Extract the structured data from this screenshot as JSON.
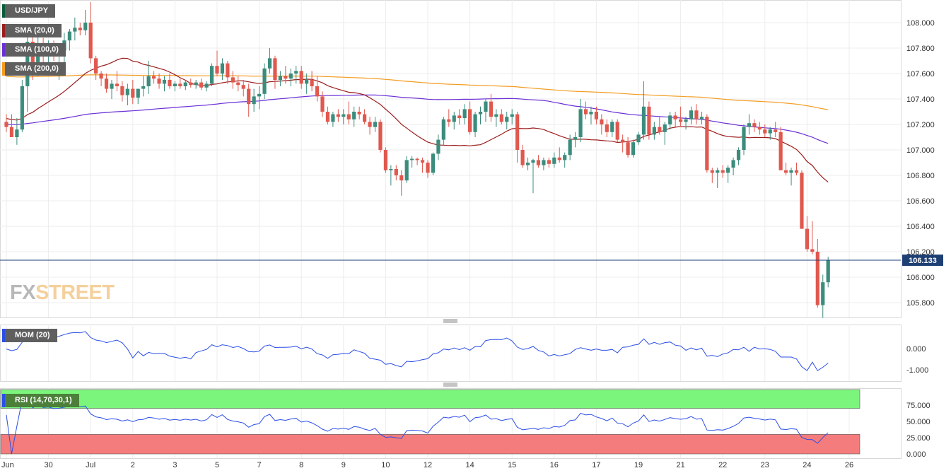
{
  "logo": {
    "fx": "FX",
    "street": "STREET"
  },
  "price_label": "106.133",
  "colors": {
    "bull": "#3b8c7c",
    "bear": "#e0584e",
    "sma20": "#9b1c1c",
    "sma100": "#6a2fd6",
    "sma200": "#f39c22",
    "mom": "#2b4ee6",
    "rsi": "#2b4ee6",
    "price_line": "#1e3f74",
    "grid": "#ececec",
    "rsi_ob": "#7cf57c",
    "rsi_os": "#f57c7c"
  },
  "indicators": {
    "main": [
      "USD/JPY",
      "SMA (20,0)",
      "SMA (100,0)",
      "SMA (200,0)"
    ],
    "mom": "MOM (20)",
    "rsi": "RSI (14,70,30,1)"
  },
  "chart_data": {
    "type": "candlestick",
    "series": [
      {
        "name": "USD/JPY"
      },
      {
        "name": "SMA (20,0)"
      },
      {
        "name": "SMA (100,0)"
      },
      {
        "name": "SMA (200,0)"
      }
    ],
    "yticks": [
      "108.000",
      "107.800",
      "107.600",
      "107.400",
      "107.200",
      "107.000",
      "106.800",
      "106.600",
      "106.400",
      "106.200",
      "106.000",
      "105.800"
    ],
    "mom_ticks": [
      "0.000",
      "-1.000"
    ],
    "rsi_ticks": [
      "75.000",
      "50.000",
      "25.000",
      "0.000"
    ],
    "xticks": [
      {
        "label": "Jun",
        "i": 0
      },
      {
        "label": "30",
        "i": 8
      },
      {
        "label": "Jul",
        "i": 16
      },
      {
        "label": "2",
        "i": 24
      },
      {
        "label": "3",
        "i": 32
      },
      {
        "label": "5",
        "i": 40
      },
      {
        "label": "7",
        "i": 48
      },
      {
        "label": "8",
        "i": 56
      },
      {
        "label": "9",
        "i": 64
      },
      {
        "label": "10",
        "i": 72
      },
      {
        "label": "12",
        "i": 80
      },
      {
        "label": "14",
        "i": 88
      },
      {
        "label": "15",
        "i": 96
      },
      {
        "label": "16",
        "i": 104
      },
      {
        "label": "17",
        "i": 112
      },
      {
        "label": "19",
        "i": 120
      },
      {
        "label": "21",
        "i": 128
      },
      {
        "label": "22",
        "i": 136
      },
      {
        "label": "23",
        "i": 144
      },
      {
        "label": "24",
        "i": 152
      },
      {
        "label": "26",
        "i": 160
      }
    ],
    "current": 106.133,
    "candles": [
      [
        107.22,
        107.28,
        107.14,
        107.18
      ],
      [
        107.18,
        107.28,
        107.12,
        107.1
      ],
      [
        107.1,
        107.25,
        107.04,
        107.16
      ],
      [
        107.16,
        107.55,
        107.14,
        107.5
      ],
      [
        107.5,
        107.9,
        107.3,
        107.85
      ],
      [
        107.85,
        107.92,
        107.55,
        107.62
      ],
      [
        107.62,
        107.9,
        107.58,
        107.84
      ],
      [
        107.84,
        107.88,
        107.6,
        107.76
      ],
      [
        107.76,
        107.86,
        107.62,
        107.8
      ],
      [
        107.8,
        107.86,
        107.7,
        107.75
      ],
      [
        107.75,
        107.8,
        107.55,
        107.78
      ],
      [
        107.78,
        107.92,
        107.65,
        107.86
      ],
      [
        107.86,
        107.95,
        107.78,
        107.93
      ],
      [
        107.93,
        108.04,
        107.86,
        107.96
      ],
      [
        107.96,
        108.0,
        107.9,
        107.94
      ],
      [
        107.94,
        108.1,
        107.9,
        108.0
      ],
      [
        108.0,
        108.16,
        107.68,
        107.72
      ],
      [
        107.72,
        107.74,
        107.55,
        107.6
      ],
      [
        107.6,
        107.62,
        107.5,
        107.56
      ],
      [
        107.56,
        107.6,
        107.45,
        107.48
      ],
      [
        107.48,
        107.55,
        107.4,
        107.52
      ],
      [
        107.52,
        107.62,
        107.46,
        107.5
      ],
      [
        107.5,
        107.54,
        107.38,
        107.43
      ],
      [
        107.43,
        107.52,
        107.35,
        107.48
      ],
      [
        107.48,
        107.55,
        107.36,
        107.41
      ],
      [
        107.41,
        107.48,
        107.36,
        107.48
      ],
      [
        107.48,
        107.58,
        107.42,
        107.5
      ],
      [
        107.5,
        107.7,
        107.44,
        107.58
      ],
      [
        107.58,
        107.62,
        107.52,
        107.56
      ],
      [
        107.56,
        107.6,
        107.48,
        107.52
      ],
      [
        107.52,
        107.58,
        107.46,
        107.55
      ],
      [
        107.55,
        107.6,
        107.48,
        107.5
      ],
      [
        107.5,
        107.54,
        107.46,
        107.52
      ],
      [
        107.52,
        107.56,
        107.48,
        107.5
      ],
      [
        107.5,
        107.55,
        107.47,
        107.53
      ],
      [
        107.53,
        107.56,
        107.49,
        107.51
      ],
      [
        107.51,
        107.55,
        107.48,
        107.53
      ],
      [
        107.53,
        107.56,
        107.47,
        107.49
      ],
      [
        107.49,
        107.54,
        107.46,
        107.52
      ],
      [
        107.52,
        107.68,
        107.5,
        107.66
      ],
      [
        107.66,
        107.78,
        107.58,
        107.6
      ],
      [
        107.6,
        107.72,
        107.55,
        107.68
      ],
      [
        107.68,
        107.7,
        107.52,
        107.57
      ],
      [
        107.57,
        107.62,
        107.48,
        107.53
      ],
      [
        107.53,
        107.58,
        107.46,
        107.51
      ],
      [
        107.51,
        107.55,
        107.42,
        107.48
      ],
      [
        107.48,
        107.52,
        107.26,
        107.36
      ],
      [
        107.36,
        107.48,
        107.3,
        107.42
      ],
      [
        107.42,
        107.5,
        107.32,
        107.44
      ],
      [
        107.44,
        107.68,
        107.4,
        107.64
      ],
      [
        107.64,
        107.8,
        107.6,
        107.72
      ],
      [
        107.72,
        107.74,
        107.48,
        107.55
      ],
      [
        107.55,
        107.62,
        107.5,
        107.58
      ],
      [
        107.58,
        107.66,
        107.52,
        107.56
      ],
      [
        107.56,
        107.64,
        107.5,
        107.6
      ],
      [
        107.6,
        107.66,
        107.52,
        107.62
      ],
      [
        107.62,
        107.66,
        107.48,
        107.52
      ],
      [
        107.52,
        107.6,
        107.44,
        107.55
      ],
      [
        107.55,
        107.62,
        107.46,
        107.5
      ],
      [
        107.5,
        107.58,
        107.38,
        107.42
      ],
      [
        107.42,
        107.46,
        107.26,
        107.3
      ],
      [
        107.3,
        107.34,
        107.2,
        107.22
      ],
      [
        107.22,
        107.3,
        107.18,
        107.28
      ],
      [
        107.28,
        107.32,
        107.22,
        107.26
      ],
      [
        107.26,
        107.32,
        107.2,
        107.28
      ],
      [
        107.28,
        107.38,
        107.2,
        107.24
      ],
      [
        107.24,
        107.34,
        107.18,
        107.3
      ],
      [
        107.3,
        107.34,
        107.24,
        107.28
      ],
      [
        107.28,
        107.32,
        107.2,
        107.22
      ],
      [
        107.22,
        107.26,
        107.12,
        107.18
      ],
      [
        107.18,
        107.26,
        107.14,
        107.22
      ],
      [
        107.22,
        107.24,
        106.98,
        107.0
      ],
      [
        107.0,
        107.02,
        106.82,
        106.84
      ],
      [
        106.84,
        106.88,
        106.72,
        106.85
      ],
      [
        106.85,
        106.88,
        106.76,
        106.8
      ],
      [
        106.8,
        106.84,
        106.64,
        106.76
      ],
      [
        106.76,
        106.95,
        106.74,
        106.92
      ],
      [
        106.92,
        106.95,
        106.86,
        106.93
      ],
      [
        106.93,
        106.94,
        106.88,
        106.92
      ],
      [
        106.92,
        106.94,
        106.82,
        106.9
      ],
      [
        106.9,
        106.92,
        106.78,
        106.82
      ],
      [
        106.82,
        106.98,
        106.8,
        106.97
      ],
      [
        106.97,
        107.12,
        106.92,
        107.08
      ],
      [
        107.08,
        107.26,
        107.04,
        107.24
      ],
      [
        107.24,
        107.32,
        107.18,
        107.22
      ],
      [
        107.22,
        107.3,
        107.16,
        107.27
      ],
      [
        107.27,
        107.32,
        107.2,
        107.25
      ],
      [
        107.25,
        107.36,
        107.2,
        107.32
      ],
      [
        107.32,
        107.38,
        107.12,
        107.14
      ],
      [
        107.14,
        107.3,
        107.1,
        107.28
      ],
      [
        107.28,
        107.34,
        107.2,
        107.3
      ],
      [
        107.3,
        107.4,
        107.22,
        107.38
      ],
      [
        107.38,
        107.44,
        107.22,
        107.26
      ],
      [
        107.26,
        107.32,
        107.18,
        107.28
      ],
      [
        107.28,
        107.32,
        107.2,
        107.22
      ],
      [
        107.22,
        107.3,
        107.16,
        107.26
      ],
      [
        107.26,
        107.32,
        107.2,
        107.28
      ],
      [
        107.28,
        107.3,
        106.9,
        107.0
      ],
      [
        107.0,
        107.04,
        106.86,
        106.88
      ],
      [
        106.88,
        106.94,
        106.84,
        106.9
      ],
      [
        106.9,
        106.93,
        106.66,
        106.92
      ],
      [
        106.92,
        106.96,
        106.86,
        106.88
      ],
      [
        106.88,
        106.94,
        106.84,
        106.92
      ],
      [
        106.92,
        106.94,
        106.86,
        106.89
      ],
      [
        106.89,
        106.98,
        106.86,
        106.94
      ],
      [
        106.94,
        107.02,
        106.9,
        106.92
      ],
      [
        106.92,
        106.98,
        106.86,
        106.96
      ],
      [
        106.96,
        107.12,
        106.92,
        107.08
      ],
      [
        107.08,
        107.14,
        107.02,
        107.1
      ],
      [
        107.1,
        107.4,
        107.06,
        107.32
      ],
      [
        107.32,
        107.38,
        107.24,
        107.28
      ],
      [
        107.28,
        107.34,
        107.2,
        107.3
      ],
      [
        107.3,
        107.34,
        107.2,
        107.24
      ],
      [
        107.24,
        107.28,
        107.12,
        107.2
      ],
      [
        107.2,
        107.24,
        107.1,
        107.14
      ],
      [
        107.14,
        107.24,
        107.1,
        107.22
      ],
      [
        107.22,
        107.24,
        107.06,
        107.08
      ],
      [
        107.08,
        107.12,
        106.98,
        107.06
      ],
      [
        107.06,
        107.1,
        106.94,
        106.96
      ],
      [
        106.96,
        107.08,
        106.94,
        107.06
      ],
      [
        107.06,
        107.14,
        107.04,
        107.12
      ],
      [
        107.12,
        107.54,
        107.08,
        107.34
      ],
      [
        107.34,
        107.38,
        107.08,
        107.12
      ],
      [
        107.12,
        107.22,
        107.08,
        107.18
      ],
      [
        107.18,
        107.26,
        107.12,
        107.14
      ],
      [
        107.14,
        107.22,
        107.04,
        107.2
      ],
      [
        107.2,
        107.3,
        107.16,
        107.27
      ],
      [
        107.27,
        107.3,
        107.18,
        107.24
      ],
      [
        107.24,
        107.34,
        107.18,
        107.22
      ],
      [
        107.22,
        107.26,
        107.16,
        107.24
      ],
      [
        107.24,
        107.34,
        107.2,
        107.31
      ],
      [
        107.31,
        107.36,
        107.2,
        107.24
      ],
      [
        107.24,
        107.3,
        107.2,
        107.26
      ],
      [
        107.26,
        107.28,
        106.82,
        106.84
      ],
      [
        106.84,
        106.86,
        106.74,
        106.82
      ],
      [
        106.82,
        106.86,
        106.7,
        106.84
      ],
      [
        106.84,
        106.88,
        106.78,
        106.82
      ],
      [
        106.82,
        106.88,
        106.74,
        106.86
      ],
      [
        106.86,
        106.94,
        106.8,
        106.92
      ],
      [
        106.92,
        107.02,
        106.88,
        107.0
      ],
      [
        107.0,
        107.2,
        106.96,
        107.18
      ],
      [
        107.18,
        107.28,
        107.12,
        107.21
      ],
      [
        107.21,
        107.24,
        107.14,
        107.18
      ],
      [
        107.18,
        107.22,
        107.12,
        107.16
      ],
      [
        107.16,
        107.2,
        107.1,
        107.13
      ],
      [
        107.13,
        107.18,
        107.08,
        107.16
      ],
      [
        107.16,
        107.22,
        107.1,
        107.14
      ],
      [
        107.14,
        107.18,
        106.84,
        106.84
      ],
      [
        106.84,
        106.9,
        106.8,
        106.82
      ],
      [
        106.82,
        106.86,
        106.72,
        106.84
      ],
      [
        106.84,
        106.9,
        106.8,
        106.82
      ],
      [
        106.82,
        106.84,
        106.38,
        106.38
      ],
      [
        106.38,
        106.48,
        106.2,
        106.22
      ],
      [
        106.22,
        106.44,
        106.18,
        106.2
      ],
      [
        106.2,
        106.3,
        105.76,
        105.78
      ],
      [
        105.78,
        106.02,
        105.68,
        105.96
      ],
      [
        105.96,
        106.16,
        105.92,
        106.133
      ]
    ]
  }
}
